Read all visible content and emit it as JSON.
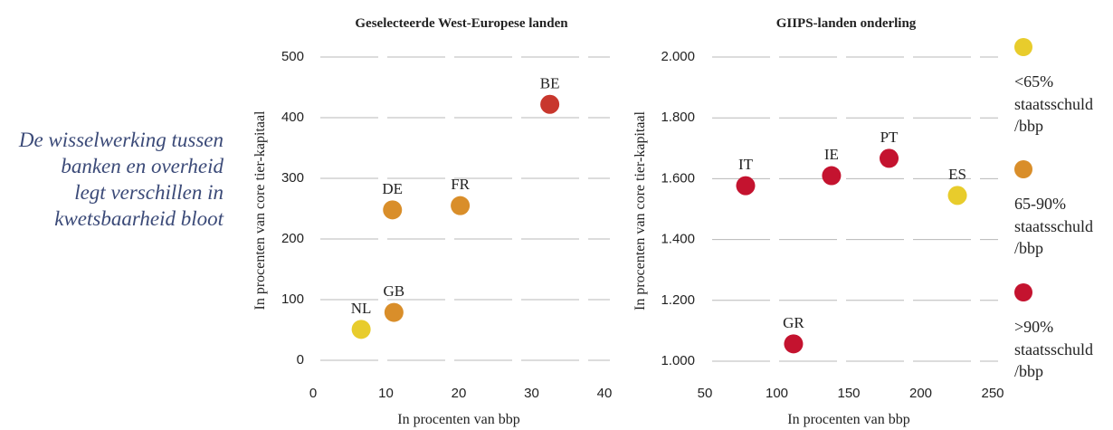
{
  "caption": [
    "De wisselwerking tussen",
    "banken en overheid",
    "legt verschillen in",
    "kwetsbaarheid bloot"
  ],
  "legend": [
    {
      "name": "<65% staatsschuld /bbp",
      "color": "#e8cc2c"
    },
    {
      "name": "65-90% staatsschuld /bbp",
      "color": "#d98e2a"
    },
    {
      "name": ">90% staatsschuld /bbp",
      "color": "#c4132f"
    }
  ],
  "chart_data": [
    {
      "type": "scatter",
      "title": "Geselecteerde West-Europese landen",
      "x_label": "In procenten van bbp",
      "y_label": "In procenten van core tier-kapitaal",
      "labels": [
        "NL",
        "GB",
        "DE",
        "FR",
        "BE"
      ],
      "x": [
        6.6,
        11.1,
        10.9,
        20.2,
        32.5
      ],
      "y": [
        51,
        79,
        248,
        255,
        422
      ],
      "colors": [
        "#e8cc2c",
        "#d98e2a",
        "#d98e2a",
        "#d98e2a",
        "#c8372d"
      ],
      "xlim": [
        0,
        40
      ],
      "xticks": [
        0,
        10,
        20,
        30,
        40
      ],
      "ylim": [
        0,
        500
      ],
      "yticks": [
        0,
        100,
        200,
        300,
        400,
        500
      ],
      "grid": true
    },
    {
      "type": "scatter",
      "title": "GIIPS-landen onderling",
      "x_label": "In procenten van bbp",
      "y_label": "In procenten van core tier-kapitaal",
      "labels": [
        "IT",
        "GR",
        "IE",
        "PT",
        "ES"
      ],
      "x": [
        78.3,
        111.6,
        138,
        178,
        225.5
      ],
      "y": [
        1577,
        1057,
        1610,
        1667,
        1545
      ],
      "colors": [
        "#c4132f",
        "#c4132f",
        "#c4132f",
        "#c4132f",
        "#e8cc2c"
      ],
      "xlim": [
        50,
        250
      ],
      "xticks": [
        50,
        100,
        150,
        200,
        250
      ],
      "ylim": [
        1000,
        2000
      ],
      "yticks": [
        {
          "value": 1000,
          "label": "1.000"
        },
        {
          "value": 1200,
          "label": "1.200"
        },
        {
          "value": 1400,
          "label": "1.400"
        },
        {
          "value": 1600,
          "label": "1.600"
        },
        {
          "value": 1800,
          "label": "1.800"
        },
        {
          "value": 2000,
          "label": "2.000"
        }
      ],
      "grid": true
    }
  ]
}
